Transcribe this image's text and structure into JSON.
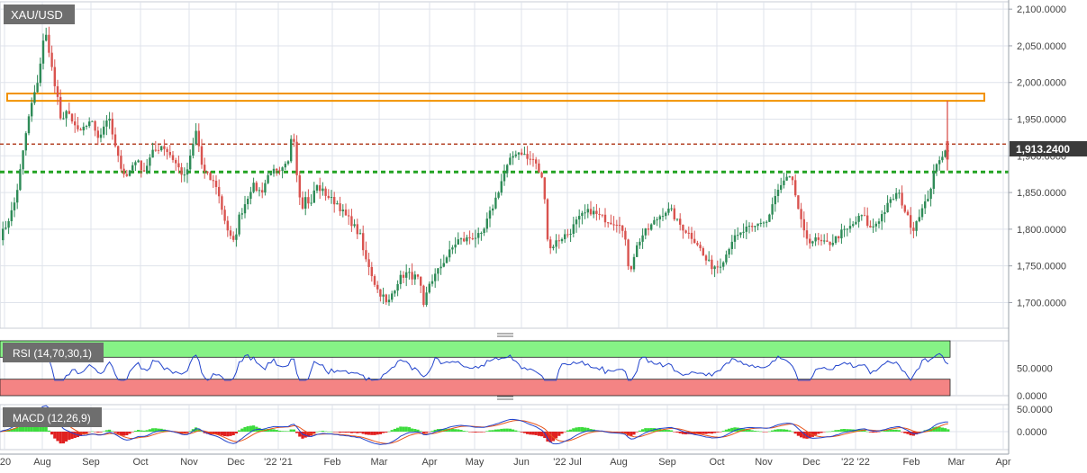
{
  "symbol": "XAU/USD",
  "price_tag": "1,913.2400",
  "rsi_label": "RSI (14,70,30,1)",
  "macd_label": "MACD (12,26,9)",
  "colors": {
    "up": "#2e8b57",
    "down": "#d9534f",
    "resistance_zone": "#f29200",
    "dotted_red": "#b5462a",
    "dotted_green": "#23a323",
    "rsi_line": "#2244cc",
    "rsi_overbought": "#86f286",
    "rsi_oversold": "#f48484",
    "macd_line": "#2244cc",
    "signal_line": "#e8561c",
    "hist_pos": "#3ddc3d",
    "hist_neg": "#e02020",
    "grid": "#dfe3eb"
  },
  "chart_data": [
    {
      "type": "candlestick",
      "title": "XAU/USD",
      "x_ticks": [
        "'20",
        "Aug",
        "Sep",
        "Oct",
        "Nov",
        "Dec",
        "'22 '21",
        "Feb",
        "Mar",
        "Apr",
        "May",
        "Jun",
        "'22 Jul",
        "Aug",
        "Sep",
        "Oct",
        "Nov",
        "Dec",
        "'22 '22",
        "Feb",
        "Mar",
        "Apr"
      ],
      "y_ticks": [
        "2,100.0000",
        "2,050.0000",
        "2,000.0000",
        "1,950.0000",
        "1,900.0000",
        "1,850.0000",
        "1,800.0000",
        "1,750.0000",
        "1,700.0000"
      ],
      "ylim": [
        1665,
        2110
      ],
      "last_price": 1913.24,
      "resistance_zone": [
        1975,
        1985
      ],
      "dotted_red_level": 1916,
      "dotted_green_level": 1878,
      "keypoints": [
        [
          0,
          1790
        ],
        [
          5,
          1800
        ],
        [
          10,
          1815
        ],
        [
          15,
          1830
        ],
        [
          20,
          1860
        ],
        [
          25,
          1900
        ],
        [
          30,
          1940
        ],
        [
          35,
          1970
        ],
        [
          40,
          1990
        ],
        [
          44,
          2020
        ],
        [
          48,
          2055
        ],
        [
          52,
          2065
        ],
        [
          55,
          2040
        ],
        [
          60,
          2000
        ],
        [
          65,
          1970
        ],
        [
          68,
          1940
        ],
        [
          72,
          1965
        ],
        [
          80,
          1945
        ],
        [
          90,
          1930
        ],
        [
          100,
          1950
        ],
        [
          110,
          1925
        ],
        [
          120,
          1955
        ],
        [
          130,
          1900
        ],
        [
          140,
          1870
        ],
        [
          150,
          1895
        ],
        [
          160,
          1880
        ],
        [
          170,
          1905
        ],
        [
          180,
          1915
        ],
        [
          190,
          1900
        ],
        [
          200,
          1880
        ],
        [
          205,
          1870
        ],
        [
          210,
          1890
        ],
        [
          218,
          1935
        ],
        [
          225,
          1880
        ],
        [
          232,
          1870
        ],
        [
          240,
          1860
        ],
        [
          248,
          1820
        ],
        [
          255,
          1790
        ],
        [
          260,
          1780
        ],
        [
          265,
          1815
        ],
        [
          272,
          1835
        ],
        [
          280,
          1860
        ],
        [
          290,
          1850
        ],
        [
          300,
          1880
        ],
        [
          310,
          1875
        ],
        [
          320,
          1890
        ],
        [
          325,
          1945
        ],
        [
          330,
          1870
        ],
        [
          335,
          1830
        ],
        [
          340,
          1845
        ],
        [
          345,
          1830
        ],
        [
          350,
          1860
        ],
        [
          360,
          1850
        ],
        [
          368,
          1840
        ],
        [
          375,
          1835
        ],
        [
          382,
          1820
        ],
        [
          390,
          1810
        ],
        [
          400,
          1790
        ],
        [
          405,
          1760
        ],
        [
          410,
          1750
        ],
        [
          415,
          1730
        ],
        [
          420,
          1715
        ],
        [
          425,
          1710
        ],
        [
          430,
          1695
        ],
        [
          436,
          1715
        ],
        [
          442,
          1730
        ],
        [
          450,
          1740
        ],
        [
          460,
          1735
        ],
        [
          466,
          1730
        ],
        [
          470,
          1690
        ],
        [
          476,
          1725
        ],
        [
          485,
          1740
        ],
        [
          492,
          1755
        ],
        [
          500,
          1770
        ],
        [
          508,
          1785
        ],
        [
          515,
          1785
        ],
        [
          525,
          1790
        ],
        [
          535,
          1790
        ],
        [
          542,
          1815
        ],
        [
          550,
          1840
        ],
        [
          558,
          1870
        ],
        [
          565,
          1890
        ],
        [
          572,
          1905
        ],
        [
          580,
          1905
        ],
        [
          586,
          1895
        ],
        [
          592,
          1895
        ],
        [
          598,
          1880
        ],
        [
          604,
          1860
        ],
        [
          609,
          1770
        ],
        [
          615,
          1780
        ],
        [
          625,
          1790
        ],
        [
          632,
          1795
        ],
        [
          640,
          1810
        ],
        [
          648,
          1820
        ],
        [
          656,
          1825
        ],
        [
          662,
          1820
        ],
        [
          670,
          1815
        ],
        [
          680,
          1810
        ],
        [
          688,
          1810
        ],
        [
          694,
          1785
        ],
        [
          699,
          1740
        ],
        [
          705,
          1770
        ],
        [
          712,
          1790
        ],
        [
          720,
          1800
        ],
        [
          730,
          1815
        ],
        [
          738,
          1825
        ],
        [
          745,
          1825
        ],
        [
          752,
          1810
        ],
        [
          760,
          1800
        ],
        [
          768,
          1790
        ],
        [
          775,
          1780
        ],
        [
          782,
          1760
        ],
        [
          790,
          1750
        ],
        [
          798,
          1750
        ],
        [
          806,
          1765
        ],
        [
          812,
          1785
        ],
        [
          820,
          1790
        ],
        [
          828,
          1800
        ],
        [
          836,
          1800
        ],
        [
          844,
          1810
        ],
        [
          852,
          1810
        ],
        [
          858,
          1835
        ],
        [
          865,
          1855
        ],
        [
          871,
          1865
        ],
        [
          876,
          1870
        ],
        [
          881,
          1860
        ],
        [
          886,
          1830
        ],
        [
          892,
          1795
        ],
        [
          898,
          1785
        ],
        [
          906,
          1785
        ],
        [
          914,
          1780
        ],
        [
          920,
          1780
        ],
        [
          926,
          1785
        ],
        [
          934,
          1795
        ],
        [
          942,
          1800
        ],
        [
          950,
          1810
        ],
        [
          958,
          1820
        ],
        [
          966,
          1800
        ],
        [
          974,
          1810
        ],
        [
          982,
          1825
        ],
        [
          990,
          1840
        ],
        [
          997,
          1850
        ],
        [
          1002,
          1835
        ],
        [
          1008,
          1815
        ],
        [
          1014,
          1800
        ],
        [
          1020,
          1820
        ],
        [
          1026,
          1830
        ],
        [
          1032,
          1850
        ],
        [
          1038,
          1880
        ],
        [
          1044,
          1900
        ],
        [
          1049,
          1905
        ],
        [
          1054,
          1913.24
        ]
      ]
    },
    {
      "type": "line",
      "title": "RSI (14,70,30,1)",
      "y_ticks": [
        "50.0000",
        "0.0000"
      ],
      "ylim": [
        0,
        100
      ],
      "overbought": 70,
      "oversold": 30
    },
    {
      "type": "line",
      "title": "MACD (12,26,9)",
      "y_ticks": [
        "50.0000",
        "0.0000"
      ],
      "ylim": [
        -40,
        60
      ]
    }
  ]
}
